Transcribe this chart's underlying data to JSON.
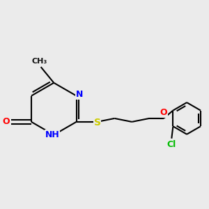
{
  "bg_color": "#ebebeb",
  "bond_color": "#000000",
  "bond_width": 1.5,
  "atom_colors": {
    "N": "#0000ff",
    "O": "#ff0000",
    "S": "#cccc00",
    "Cl": "#00bb00",
    "C": "#000000"
  }
}
